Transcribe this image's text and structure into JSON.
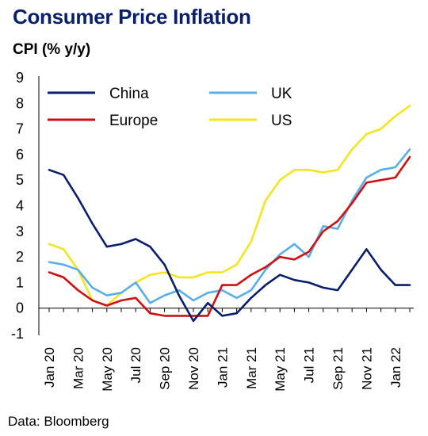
{
  "header": {
    "title": "Consumer Price Inflation",
    "subtitle": "CPI (% y/y)"
  },
  "footer": {
    "source": "Data: Bloomberg"
  },
  "chart_data": {
    "type": "line",
    "title": "Consumer Price Inflation",
    "ylabel": "CPI (% y/y)",
    "xlabel": "",
    "ylim": [
      -1,
      9
    ],
    "y_ticks": [
      -1,
      0,
      1,
      2,
      3,
      4,
      5,
      6,
      7,
      8,
      9
    ],
    "grid": false,
    "legend": "top, two columns",
    "x": [
      "Jan 20",
      "Feb 20",
      "Mar 20",
      "Apr 20",
      "May 20",
      "Jun 20",
      "Jul 20",
      "Aug 20",
      "Sep 20",
      "Oct 20",
      "Nov 20",
      "Dec 20",
      "Jan 21",
      "Feb 21",
      "Mar 21",
      "Apr 21",
      "May 21",
      "Jun 21",
      "Jul 21",
      "Aug 21",
      "Sep 21",
      "Oct 21",
      "Nov 21",
      "Dec 21",
      "Jan 22",
      "Feb 22"
    ],
    "x_tick_labels": [
      "Jan 20",
      "Mar 20",
      "May 20",
      "Jul 20",
      "Sep 20",
      "Nov 20",
      "Jan 21",
      "Mar 21",
      "May 21",
      "Jul 21",
      "Sep 21",
      "Nov 21",
      "Jan 22"
    ],
    "series": [
      {
        "name": "China",
        "color": "#0a1f6b",
        "values": [
          5.4,
          5.2,
          4.3,
          3.3,
          2.4,
          2.5,
          2.7,
          2.4,
          1.7,
          0.5,
          -0.5,
          0.2,
          -0.3,
          -0.2,
          0.4,
          0.9,
          1.3,
          1.1,
          1.0,
          0.8,
          0.7,
          1.5,
          2.3,
          1.5,
          0.9,
          0.9
        ]
      },
      {
        "name": "UK",
        "color": "#5aaee8",
        "values": [
          1.8,
          1.7,
          1.5,
          0.8,
          0.5,
          0.6,
          1.0,
          0.2,
          0.5,
          0.7,
          0.3,
          0.6,
          0.7,
          0.4,
          0.7,
          1.5,
          2.1,
          2.5,
          2.0,
          3.2,
          3.1,
          4.2,
          5.1,
          5.4,
          5.5,
          6.2
        ]
      },
      {
        "name": "Europe",
        "color": "#d01010",
        "values": [
          1.4,
          1.2,
          0.7,
          0.3,
          0.1,
          0.3,
          0.4,
          -0.2,
          -0.3,
          -0.3,
          -0.3,
          -0.3,
          0.9,
          0.9,
          1.3,
          1.6,
          2.0,
          1.9,
          2.2,
          3.0,
          3.4,
          4.1,
          4.9,
          5.0,
          5.1,
          5.9
        ]
      },
      {
        "name": "US",
        "color": "#f5e51e",
        "values": [
          2.5,
          2.3,
          1.5,
          0.3,
          0.1,
          0.6,
          1.0,
          1.3,
          1.4,
          1.2,
          1.2,
          1.4,
          1.4,
          1.7,
          2.6,
          4.2,
          5.0,
          5.4,
          5.4,
          5.3,
          5.4,
          6.2,
          6.8,
          7.0,
          7.5,
          7.9
        ]
      }
    ]
  }
}
